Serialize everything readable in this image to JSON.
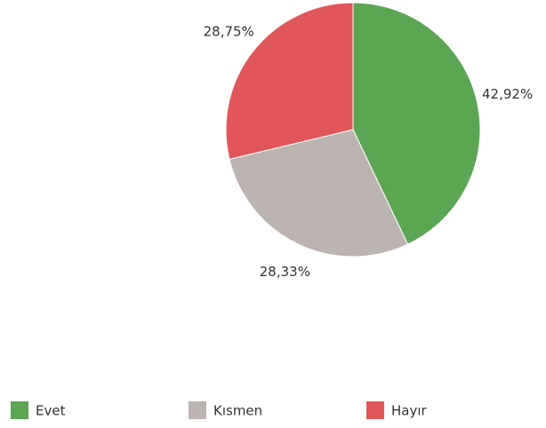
{
  "chart_data": {
    "type": "pie",
    "categories": [
      "Evet",
      "Kısmen",
      "Hayır"
    ],
    "values": [
      42.92,
      28.33,
      28.75
    ],
    "value_labels": [
      "42,92%",
      "28,33%",
      "28,75%"
    ],
    "colors": [
      "#5ba553",
      "#bcb4b0",
      "#e15759"
    ]
  }
}
